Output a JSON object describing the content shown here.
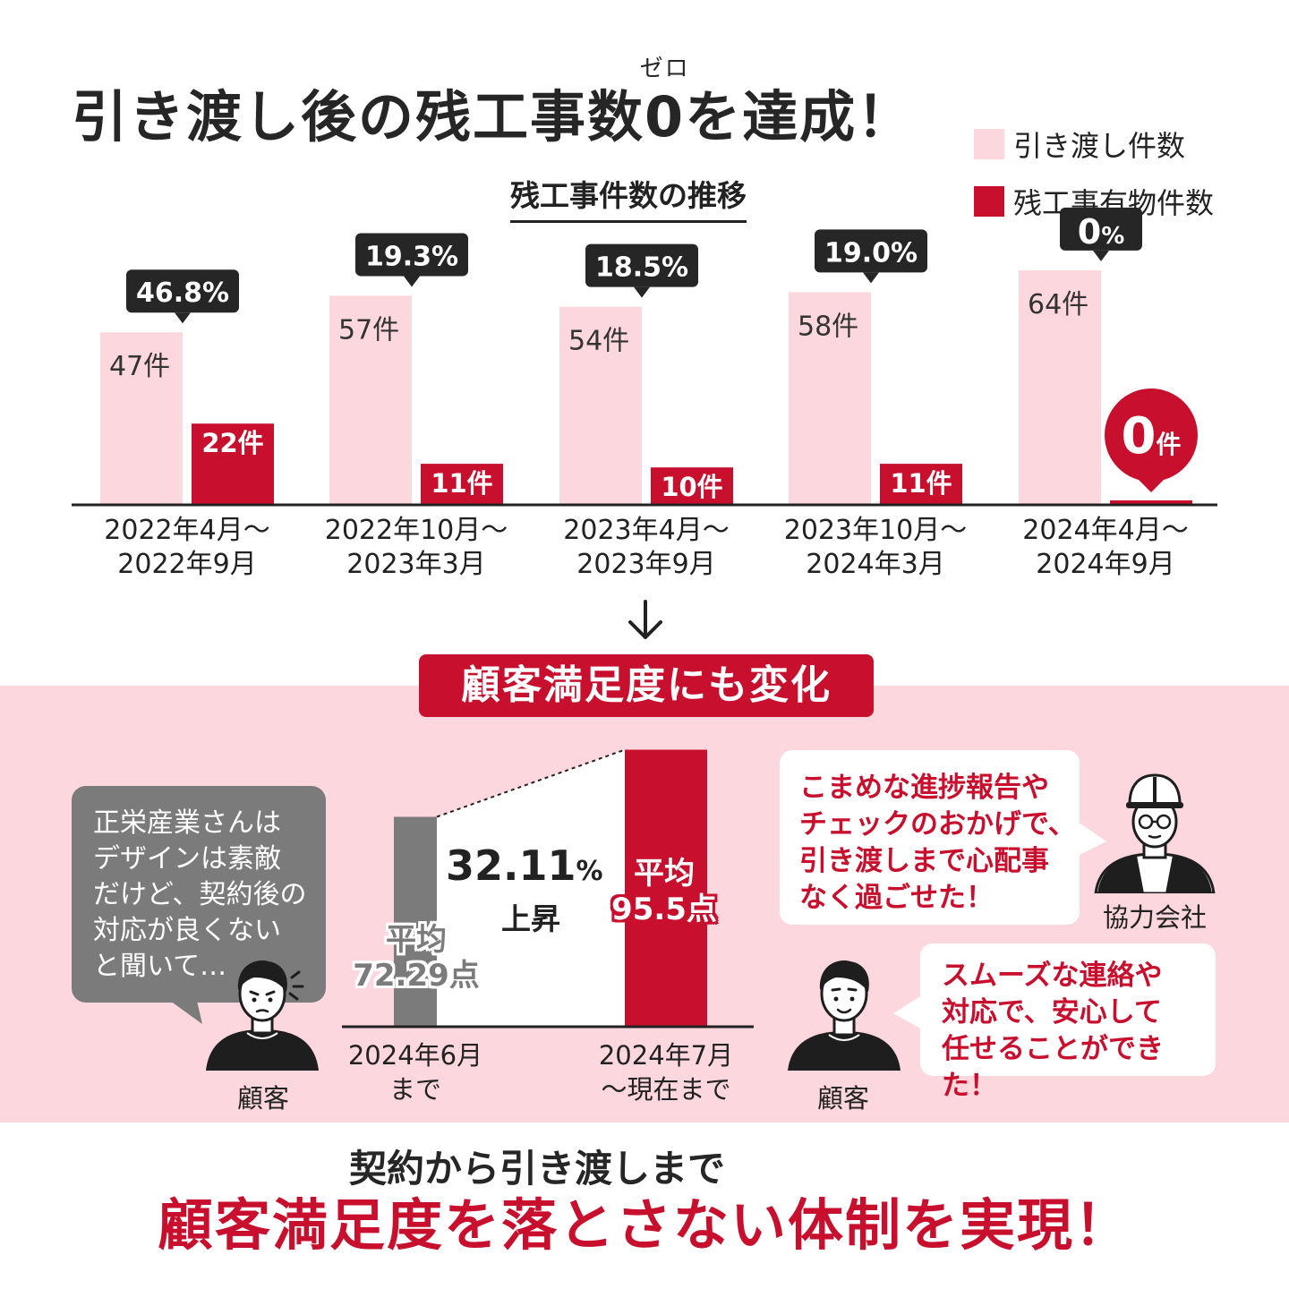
{
  "header": {
    "title_before": "引き渡し後の残工事数",
    "title_zero": "0",
    "title_zero_ruby": "ゼロ",
    "title_after": "を達成！",
    "chart_title": "残工事件数の推移"
  },
  "colors": {
    "handover": "#fcd7dd",
    "remaining": "#c8102e",
    "bubble_dark": "#262626",
    "gray": "#7b7b7b"
  },
  "chart_data": [
    {
      "type": "bar",
      "title": "残工事件数の推移",
      "legend_position": "top-right",
      "categories": [
        "2022年4月～\n2022年9月",
        "2022年10月～\n2023年3月",
        "2023年4月～\n2023年9月",
        "2023年10月～\n2024年3月",
        "2024年4月～\n2024年9月"
      ],
      "category_lines": [
        [
          "2022年4月～",
          "2022年9月"
        ],
        [
          "2022年10月～",
          "2023年3月"
        ],
        [
          "2023年4月～",
          "2023年9月"
        ],
        [
          "2023年10月～",
          "2024年3月"
        ],
        [
          "2024年4月～",
          "2024年9月"
        ]
      ],
      "series": [
        {
          "name": "引き渡し件数",
          "values": [
            47,
            57,
            54,
            58,
            64
          ],
          "labels": [
            "47件",
            "57件",
            "54件",
            "58件",
            "64件"
          ]
        },
        {
          "name": "残工事有物件数",
          "values": [
            22,
            11,
            10,
            11,
            0
          ],
          "labels": [
            "22件",
            "11件",
            "10件",
            "11件",
            "0件"
          ]
        }
      ],
      "rates": [
        "46.8%",
        "19.3%",
        "18.5%",
        "19.0%",
        "0%"
      ],
      "ylim": [
        0,
        70
      ]
    },
    {
      "type": "bar",
      "categories": [
        "2024年6月\nまで",
        "2024年7月\n～現在まで"
      ],
      "values": [
        72.29,
        95.5
      ],
      "labels": [
        "平均\n72.29点",
        "平均\n95.5点"
      ],
      "increase": "32.11%",
      "increase_label": "上昇"
    }
  ],
  "satisfaction": {
    "section_label": "顧客満足度にも変化",
    "before_label_1": "平均",
    "before_label_2": "72.29点",
    "after_label_1": "平均",
    "after_label_2": "95.5点",
    "before_date_1": "2024年6月",
    "before_date_2": "まで",
    "after_date_1": "2024年7月",
    "after_date_2": "～現在まで",
    "increase_value": "32.11",
    "increase_unit": "%",
    "increase_word": "上昇"
  },
  "bubbles": {
    "worried_customer": [
      "正栄産業さんは",
      "デザインは素敵",
      "だけど、契約後の",
      "対応が良くない",
      "と聞いて…"
    ],
    "partner": [
      "こまめな進捗報告や",
      "チェックのおかげで、",
      "引き渡しまで心配事",
      "なく過ごせた！"
    ],
    "happy_customer": [
      "スムーズな連絡や",
      "対応で、安心して",
      "任せることができた！"
    ]
  },
  "people": {
    "customer_left": "顧客",
    "partner": "協力会社",
    "customer_right": "顧客"
  },
  "footer": {
    "line1": "契約から引き渡しまで",
    "line2": "顧客満足度を落とさない体制を実現！"
  }
}
